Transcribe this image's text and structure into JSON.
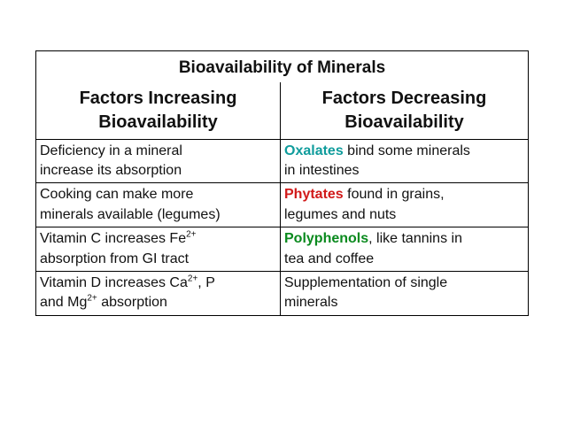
{
  "title": "Bioavailability of Minerals",
  "headers": {
    "increasing": "Factors Increasing Bioavailability",
    "increasing_line1": "Factors Increasing",
    "increasing_line2": "Bioavailability",
    "decreasing": "Factors Decreasing Bioavailability",
    "decreasing_line1": "Factors Decreasing",
    "decreasing_line2": "Bioavailability"
  },
  "rows": [
    {
      "increasing": {
        "line1": "Deficiency in a mineral",
        "line2": "increase its absorption"
      },
      "decreasing": {
        "keyword": "Oxalates",
        "line1_rest": " bind some minerals",
        "line2": "in intestines"
      }
    },
    {
      "increasing": {
        "line1": "Cooking can make more",
        "line2": "minerals available (legumes)"
      },
      "decreasing": {
        "keyword": "Phytates",
        "line1_rest": " found in grains,",
        "line2": "legumes and nuts"
      }
    },
    {
      "increasing": {
        "line1_pre": "Vitamin C increases Fe",
        "sup": "2+",
        "line2": "absorption from GI tract"
      },
      "decreasing": {
        "keyword": "Polyphenols",
        "line1_rest": ", like tannins in",
        "line2": "tea and coffee"
      }
    },
    {
      "increasing": {
        "line1_pre": "Vitamin D increases Ca",
        "sup1": "2+",
        "line1_mid": ", P",
        "line2_pre": "and Mg",
        "sup2": "2+",
        "line2_post": " absorption"
      },
      "decreasing": {
        "line1": "Supplementation of single",
        "line2": "minerals"
      }
    }
  ],
  "colors": {
    "title": "#7a4a1a",
    "header_increasing": "#1f55b8",
    "header_decreasing": "#e01010",
    "oxalates": "#0f9c9c",
    "phytates": "#d11a1a",
    "polyphenols": "#0a8a1e"
  }
}
